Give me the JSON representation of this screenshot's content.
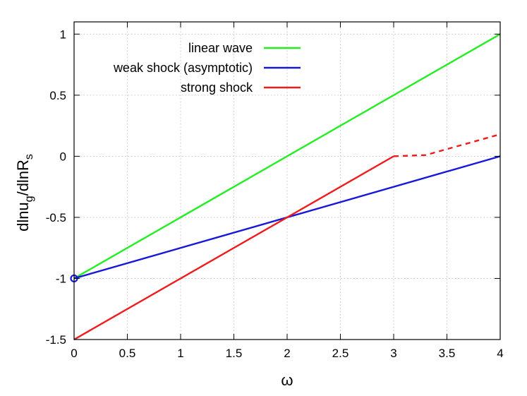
{
  "chart_data": {
    "type": "line",
    "title": "",
    "xlabel": "ω",
    "ylabel": {
      "prefix": "dlnu",
      "sub1": "g",
      "middle": "/dlnR",
      "sub2": "s"
    },
    "xlim": [
      0,
      4
    ],
    "ylim": [
      -1.5,
      1.1
    ],
    "x_ticks": [
      {
        "value": 0,
        "label": "0"
      },
      {
        "value": 0.5,
        "label": "0.5"
      },
      {
        "value": 1,
        "label": "1"
      },
      {
        "value": 1.5,
        "label": "1.5"
      },
      {
        "value": 2,
        "label": "2"
      },
      {
        "value": 2.5,
        "label": "2.5"
      },
      {
        "value": 3,
        "label": "3"
      },
      {
        "value": 3.5,
        "label": "3.5"
      },
      {
        "value": 4,
        "label": "4"
      }
    ],
    "y_ticks": [
      {
        "value": -1.5,
        "label": "-1.5"
      },
      {
        "value": -1,
        "label": "-1"
      },
      {
        "value": -0.5,
        "label": "-0.5"
      },
      {
        "value": 0,
        "label": "0"
      },
      {
        "value": 0.5,
        "label": "0.5"
      },
      {
        "value": 1,
        "label": "1"
      }
    ],
    "grid": true,
    "legend_position": "top-left",
    "series": [
      {
        "name": "linear wave",
        "color": "#22ee22",
        "points": [
          [
            0,
            -1
          ],
          [
            4,
            1
          ]
        ],
        "style": "solid"
      },
      {
        "name": "weak shock (asymptotic)",
        "color": "#1818d8",
        "points": [
          [
            0,
            -1
          ],
          [
            4,
            0
          ]
        ],
        "style": "solid"
      },
      {
        "name": "strong shock",
        "color": "#ee1c1c",
        "points": [
          [
            0,
            -1.5
          ],
          [
            3,
            0
          ]
        ],
        "style": "solid",
        "extension": {
          "points": [
            [
              3,
              0
            ],
            [
              3.3,
              0.01
            ],
            [
              4,
              0.18
            ]
          ],
          "style": "dashed"
        }
      }
    ],
    "markers": [
      {
        "shape": "open-circle",
        "x": 0,
        "y": -1,
        "color": "#1818d8"
      }
    ]
  }
}
